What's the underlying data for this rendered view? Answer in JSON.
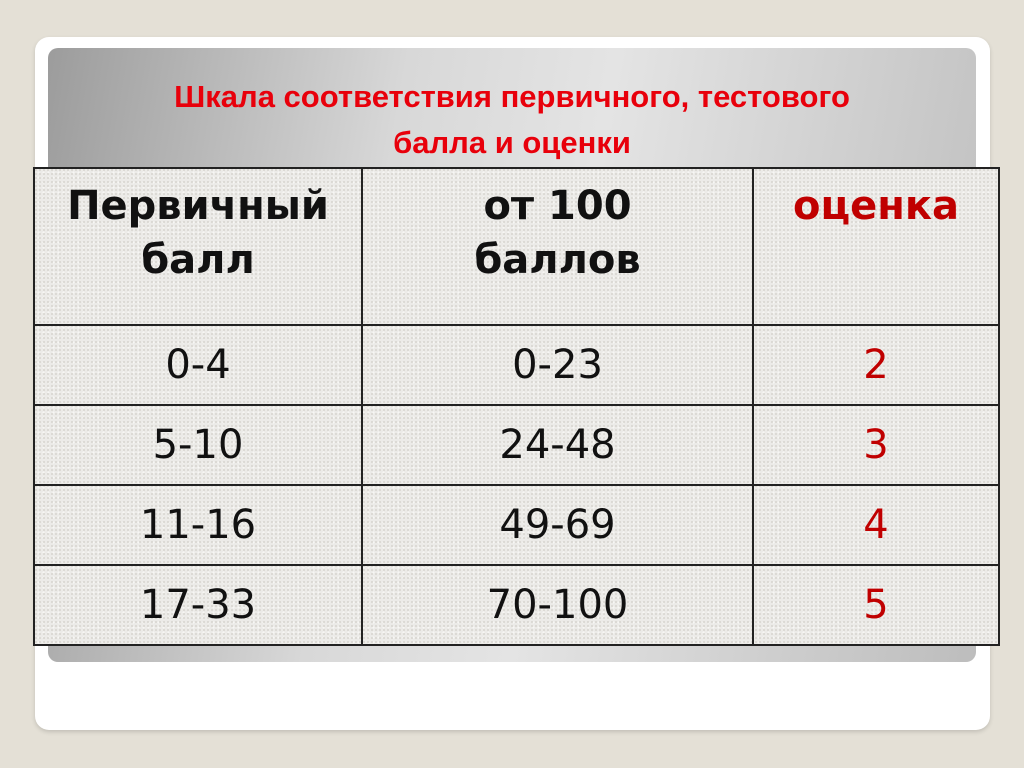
{
  "title_line1": "Шкала соответствия первичного, тестового",
  "title_line2": "балла и оценки",
  "table": {
    "headers": [
      {
        "line1": "Первичный",
        "line2": "балл"
      },
      {
        "line1": "от 100",
        "line2": "баллов"
      },
      {
        "line1": "оценка",
        "line2": ""
      }
    ],
    "rows": [
      [
        "0-4",
        "0-23",
        "2"
      ],
      [
        "5-10",
        "24-48",
        "3"
      ],
      [
        "11-16",
        "49-69",
        "4"
      ],
      [
        "17-33",
        "70-100",
        "5"
      ]
    ]
  },
  "colors": {
    "title": "#e8000b",
    "grade": "#c00000"
  }
}
